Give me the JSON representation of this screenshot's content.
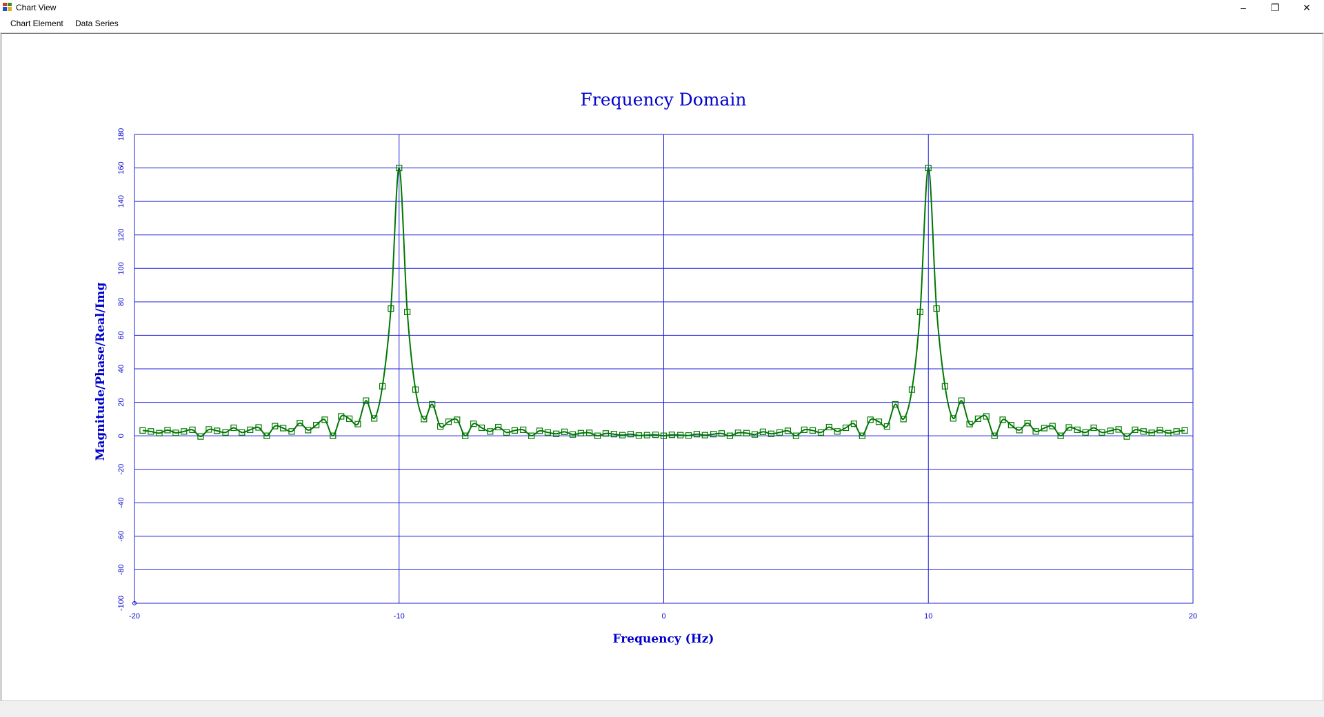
{
  "window": {
    "title": "Chart View",
    "controls": {
      "minimize": "–",
      "restore": "❐",
      "close": "✕"
    }
  },
  "menu": {
    "items": [
      {
        "label": "Chart Element"
      },
      {
        "label": "Data Series"
      }
    ]
  },
  "colors": {
    "axis": "#0000cc",
    "grid": "#2020d8",
    "series": "#007700",
    "title": "#0000cc"
  },
  "chart_data": {
    "type": "line",
    "title": "Frequency Domain",
    "xlabel": "Frequency (Hz)",
    "ylabel": "Magnitude/Phase/Real/Img",
    "xlim": [
      -20,
      20
    ],
    "ylim": [
      -100,
      180
    ],
    "xticks": [
      -20,
      -10,
      0,
      10,
      20
    ],
    "yticks": [
      -100,
      -80,
      -60,
      -40,
      -20,
      0,
      20,
      40,
      60,
      80,
      100,
      120,
      140,
      160,
      180
    ],
    "grid": true,
    "legend": "none",
    "series": [
      {
        "marker": "square",
        "points": [
          [
            -19.69,
            3.2
          ],
          [
            -19.38,
            2.6
          ],
          [
            -19.06,
            1.6
          ],
          [
            -18.75,
            3.4
          ],
          [
            -18.44,
            1.8
          ],
          [
            -18.13,
            2.6
          ],
          [
            -17.81,
            3.6
          ],
          [
            -17.5,
            -0.4
          ],
          [
            -17.19,
            3.8
          ],
          [
            -16.88,
            3.0
          ],
          [
            -16.56,
            2.0
          ],
          [
            -16.25,
            4.8
          ],
          [
            -15.94,
            2.0
          ],
          [
            -15.63,
            3.6
          ],
          [
            -15.31,
            5.0
          ],
          [
            -15.0,
            0.0
          ],
          [
            -14.69,
            5.8
          ],
          [
            -14.38,
            4.6
          ],
          [
            -14.06,
            2.6
          ],
          [
            -13.75,
            7.6
          ],
          [
            -13.44,
            3.4
          ],
          [
            -13.13,
            6.4
          ],
          [
            -12.81,
            9.6
          ],
          [
            -12.5,
            0.0
          ],
          [
            -12.19,
            11.6
          ],
          [
            -11.88,
            10.2
          ],
          [
            -11.56,
            7.0
          ],
          [
            -11.25,
            21.0
          ],
          [
            -10.94,
            10.4
          ],
          [
            -10.63,
            29.6
          ],
          [
            -10.31,
            76.0
          ],
          [
            -10.0,
            160.0
          ],
          [
            -9.69,
            74.0
          ],
          [
            -9.38,
            27.6
          ],
          [
            -9.06,
            10.0
          ],
          [
            -8.75,
            18.8
          ],
          [
            -8.44,
            5.6
          ],
          [
            -8.13,
            8.4
          ],
          [
            -7.81,
            9.6
          ],
          [
            -7.5,
            0.0
          ],
          [
            -7.19,
            7.2
          ],
          [
            -6.88,
            4.8
          ],
          [
            -6.56,
            2.6
          ],
          [
            -6.25,
            5.2
          ],
          [
            -5.94,
            2.0
          ],
          [
            -5.63,
            3.2
          ],
          [
            -5.31,
            3.6
          ],
          [
            -5.0,
            0.0
          ],
          [
            -4.69,
            3.0
          ],
          [
            -4.38,
            2.0
          ],
          [
            -4.06,
            1.2
          ],
          [
            -3.75,
            2.4
          ],
          [
            -3.44,
            0.8
          ],
          [
            -3.13,
            1.6
          ],
          [
            -2.81,
            1.8
          ],
          [
            -2.5,
            0.0
          ],
          [
            -2.19,
            1.4
          ],
          [
            -1.88,
            1.0
          ],
          [
            -1.56,
            0.4
          ],
          [
            -1.25,
            1.0
          ],
          [
            -0.94,
            0.2
          ],
          [
            -0.63,
            0.4
          ],
          [
            -0.31,
            0.6
          ],
          [
            0.0,
            0.0
          ],
          [
            0.31,
            0.6
          ],
          [
            0.63,
            0.4
          ],
          [
            0.94,
            0.2
          ],
          [
            1.25,
            1.0
          ],
          [
            1.56,
            0.4
          ],
          [
            1.88,
            1.0
          ],
          [
            2.19,
            1.4
          ],
          [
            2.5,
            0.0
          ],
          [
            2.81,
            1.8
          ],
          [
            3.13,
            1.6
          ],
          [
            3.44,
            0.8
          ],
          [
            3.75,
            2.4
          ],
          [
            4.06,
            1.2
          ],
          [
            4.38,
            2.0
          ],
          [
            4.69,
            3.0
          ],
          [
            5.0,
            0.0
          ],
          [
            5.31,
            3.6
          ],
          [
            5.63,
            3.2
          ],
          [
            5.94,
            2.0
          ],
          [
            6.25,
            5.2
          ],
          [
            6.56,
            2.6
          ],
          [
            6.88,
            4.8
          ],
          [
            7.19,
            7.2
          ],
          [
            7.5,
            0.0
          ],
          [
            7.81,
            9.6
          ],
          [
            8.13,
            8.4
          ],
          [
            8.44,
            5.6
          ],
          [
            8.75,
            18.8
          ],
          [
            9.06,
            10.0
          ],
          [
            9.38,
            27.6
          ],
          [
            9.69,
            74.0
          ],
          [
            10.0,
            160.0
          ],
          [
            10.31,
            76.0
          ],
          [
            10.63,
            29.6
          ],
          [
            10.94,
            10.4
          ],
          [
            11.25,
            21.0
          ],
          [
            11.56,
            7.0
          ],
          [
            11.88,
            10.2
          ],
          [
            12.19,
            11.6
          ],
          [
            12.5,
            0.0
          ],
          [
            12.81,
            9.6
          ],
          [
            13.13,
            6.4
          ],
          [
            13.44,
            3.4
          ],
          [
            13.75,
            7.6
          ],
          [
            14.06,
            2.6
          ],
          [
            14.38,
            4.6
          ],
          [
            14.69,
            5.8
          ],
          [
            15.0,
            0.0
          ],
          [
            15.31,
            5.0
          ],
          [
            15.63,
            3.6
          ],
          [
            15.94,
            2.0
          ],
          [
            16.25,
            4.8
          ],
          [
            16.56,
            2.0
          ],
          [
            16.88,
            3.0
          ],
          [
            17.19,
            3.8
          ],
          [
            17.5,
            -0.4
          ],
          [
            17.81,
            3.6
          ],
          [
            18.13,
            2.6
          ],
          [
            18.44,
            1.8
          ],
          [
            18.75,
            3.4
          ],
          [
            19.06,
            1.6
          ],
          [
            19.38,
            2.6
          ],
          [
            19.69,
            3.2
          ]
        ]
      }
    ]
  }
}
